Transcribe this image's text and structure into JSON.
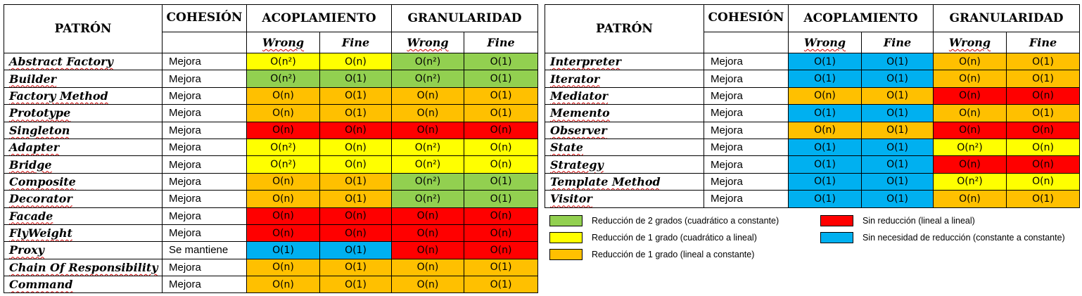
{
  "colors": {
    "green": "#92d050",
    "yellow": "#ffff00",
    "orange": "#ffc000",
    "red": "#ff0000",
    "blue": "#00b0f0"
  },
  "headers": {
    "patron": "PATRÓN",
    "cohesion": "COHESIÓN",
    "acoplamiento": "ACOPLAMIENTO",
    "granularidad": "GRANULARIDAD",
    "wrong": "Wrong",
    "fine": "Fine"
  },
  "left_table": [
    {
      "name": "Abstract Factory",
      "cohesion": "Mejora",
      "cells": [
        [
          "O(n²)",
          "yellow"
        ],
        [
          "O(n)",
          "yellow"
        ],
        [
          "O(n²)",
          "green"
        ],
        [
          "O(1)",
          "green"
        ]
      ]
    },
    {
      "name": "Builder",
      "cohesion": "Mejora",
      "cells": [
        [
          "O(n²)",
          "green"
        ],
        [
          "O(1)",
          "green"
        ],
        [
          "O(n²)",
          "green"
        ],
        [
          "O(1)",
          "green"
        ]
      ]
    },
    {
      "name": "Factory Method",
      "cohesion": "Mejora",
      "cells": [
        [
          "O(n)",
          "orange"
        ],
        [
          "O(1)",
          "orange"
        ],
        [
          "O(n)",
          "orange"
        ],
        [
          "O(1)",
          "orange"
        ]
      ]
    },
    {
      "name": "Prototype",
      "cohesion": "Mejora",
      "cells": [
        [
          "O(n)",
          "orange"
        ],
        [
          "O(1)",
          "orange"
        ],
        [
          "O(n)",
          "orange"
        ],
        [
          "O(1)",
          "orange"
        ]
      ]
    },
    {
      "name": "Singleton",
      "cohesion": "Mejora",
      "cells": [
        [
          "O(n)",
          "red"
        ],
        [
          "O(n)",
          "red"
        ],
        [
          "O(n)",
          "red"
        ],
        [
          "O(n)",
          "red"
        ]
      ]
    },
    {
      "name": "Adapter",
      "cohesion": "Mejora",
      "cells": [
        [
          "O(n²)",
          "yellow"
        ],
        [
          "O(n)",
          "yellow"
        ],
        [
          "O(n²)",
          "yellow"
        ],
        [
          "O(n)",
          "yellow"
        ]
      ]
    },
    {
      "name": "Bridge",
      "cohesion": "Mejora",
      "cells": [
        [
          "O(n²)",
          "yellow"
        ],
        [
          "O(n)",
          "yellow"
        ],
        [
          "O(n²)",
          "yellow"
        ],
        [
          "O(n)",
          "yellow"
        ]
      ]
    },
    {
      "name": "Composite",
      "cohesion": "Mejora",
      "cells": [
        [
          "O(n)",
          "orange"
        ],
        [
          "O(1)",
          "orange"
        ],
        [
          "O(n²)",
          "green"
        ],
        [
          "O(1)",
          "green"
        ]
      ]
    },
    {
      "name": "Decorator",
      "cohesion": "Mejora",
      "cells": [
        [
          "O(n)",
          "orange"
        ],
        [
          "O(1)",
          "orange"
        ],
        [
          "O(n²)",
          "green"
        ],
        [
          "O(1)",
          "green"
        ]
      ]
    },
    {
      "name": "Facade",
      "cohesion": "Mejora",
      "cells": [
        [
          "O(n)",
          "red"
        ],
        [
          "O(n)",
          "red"
        ],
        [
          "O(n)",
          "red"
        ],
        [
          "O(n)",
          "red"
        ]
      ]
    },
    {
      "name": "FlyWeight",
      "cohesion": "Mejora",
      "cells": [
        [
          "O(n)",
          "red"
        ],
        [
          "O(n)",
          "red"
        ],
        [
          "O(n)",
          "red"
        ],
        [
          "O(n)",
          "red"
        ]
      ]
    },
    {
      "name": "Proxy",
      "cohesion": "Se mantiene",
      "cells": [
        [
          "O(1)",
          "blue"
        ],
        [
          "O(1)",
          "blue"
        ],
        [
          "O(n)",
          "red"
        ],
        [
          "O(n)",
          "red"
        ]
      ]
    },
    {
      "name": "Chain Of Responsibility",
      "cohesion": "Mejora",
      "cells": [
        [
          "O(n)",
          "orange"
        ],
        [
          "O(1)",
          "orange"
        ],
        [
          "O(n)",
          "orange"
        ],
        [
          "O(1)",
          "orange"
        ]
      ]
    },
    {
      "name": "Command",
      "cohesion": "Mejora",
      "cells": [
        [
          "O(n)",
          "orange"
        ],
        [
          "O(1)",
          "orange"
        ],
        [
          "O(n)",
          "orange"
        ],
        [
          "O(1)",
          "orange"
        ]
      ]
    }
  ],
  "right_table": [
    {
      "name": "Interpreter",
      "cohesion": "Mejora",
      "cells": [
        [
          "O(1)",
          "blue"
        ],
        [
          "O(1)",
          "blue"
        ],
        [
          "O(n)",
          "orange"
        ],
        [
          "O(1)",
          "orange"
        ]
      ]
    },
    {
      "name": "Iterator",
      "cohesion": "Mejora",
      "cells": [
        [
          "O(1)",
          "blue"
        ],
        [
          "O(1)",
          "blue"
        ],
        [
          "O(n)",
          "orange"
        ],
        [
          "O(1)",
          "orange"
        ]
      ]
    },
    {
      "name": "Mediator",
      "cohesion": "Mejora",
      "cells": [
        [
          "O(n)",
          "orange"
        ],
        [
          "O(1)",
          "orange"
        ],
        [
          "O(n)",
          "red"
        ],
        [
          "O(n)",
          "red"
        ]
      ]
    },
    {
      "name": "Memento",
      "cohesion": "Mejora",
      "cells": [
        [
          "O(1)",
          "blue"
        ],
        [
          "O(1)",
          "blue"
        ],
        [
          "O(n)",
          "orange"
        ],
        [
          "O(1)",
          "orange"
        ]
      ]
    },
    {
      "name": "Observer",
      "cohesion": "Mejora",
      "cells": [
        [
          "O(n)",
          "orange"
        ],
        [
          "O(1)",
          "orange"
        ],
        [
          "O(n)",
          "red"
        ],
        [
          "O(n)",
          "red"
        ]
      ]
    },
    {
      "name": "State",
      "cohesion": "Mejora",
      "cells": [
        [
          "O(1)",
          "blue"
        ],
        [
          "O(1)",
          "blue"
        ],
        [
          "O(n²)",
          "yellow"
        ],
        [
          "O(n)",
          "yellow"
        ]
      ]
    },
    {
      "name": "Strategy",
      "cohesion": "Mejora",
      "cells": [
        [
          "O(1)",
          "blue"
        ],
        [
          "O(1)",
          "blue"
        ],
        [
          "O(n)",
          "red"
        ],
        [
          "O(n)",
          "red"
        ]
      ]
    },
    {
      "name": "Template Method",
      "cohesion": "Mejora",
      "cells": [
        [
          "O(1)",
          "blue"
        ],
        [
          "O(1)",
          "blue"
        ],
        [
          "O(n²)",
          "yellow"
        ],
        [
          "O(n)",
          "yellow"
        ]
      ]
    },
    {
      "name": "Visitor",
      "cohesion": "Mejora",
      "cells": [
        [
          "O(1)",
          "blue"
        ],
        [
          "O(1)",
          "blue"
        ],
        [
          "O(n)",
          "orange"
        ],
        [
          "O(1)",
          "orange"
        ]
      ]
    }
  ],
  "legend": [
    {
      "color": "green",
      "text": "Reducción de 2 grados (cuadrático a constante)"
    },
    {
      "color": "yellow",
      "text": "Reducción de 1 grado (cuadrático a lineal)"
    },
    {
      "color": "orange",
      "text": "Reducción de 1 grado (lineal a constante)"
    },
    {
      "color": "red",
      "text": "Sin reducción (lineal a lineal)"
    },
    {
      "color": "blue",
      "text": "Sin necesidad de reducción (constante a constante)"
    }
  ]
}
